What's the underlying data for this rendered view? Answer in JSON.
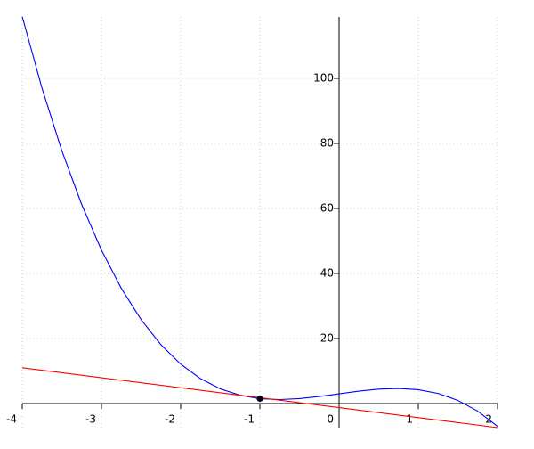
{
  "chart_data": {
    "type": "line",
    "xlim": [
      -4,
      2
    ],
    "ylim": [
      -7.4,
      118.9
    ],
    "xticks": [
      -4,
      -3,
      -2,
      -1,
      0,
      1,
      2
    ],
    "yticks": [
      20,
      40,
      60,
      80,
      100
    ],
    "grid": true,
    "series": [
      {
        "color": "#0000ff",
        "style": "line",
        "x": [
          -4,
          -3.75,
          -3.5,
          -3.25,
          -3,
          -2.75,
          -2.5,
          -2.25,
          -2,
          -1.75,
          -1.5,
          -1.25,
          -1,
          -0.75,
          -0.5,
          -0.25,
          0,
          0.25,
          0.5,
          0.75,
          1,
          1.25,
          1.5,
          1.75,
          2
        ],
        "values": [
          119.0,
          96.95,
          77.75,
          61.23,
          47.19,
          35.46,
          25.84,
          18.12,
          12.13,
          7.66,
          4.53,
          2.55,
          1.5,
          1.23,
          1.51,
          2.16,
          3,
          3.82,
          4.43,
          4.65,
          4.27,
          3.11,
          0.97,
          -2.34,
          -7.01
        ]
      },
      {
        "color": "#ff0000",
        "style": "line",
        "x": [
          -4,
          2
        ],
        "values": [
          11,
          -7.4
        ]
      },
      {
        "color": "#000000",
        "style": "point",
        "x": [
          -1
        ],
        "values": [
          1.5
        ]
      }
    ]
  }
}
